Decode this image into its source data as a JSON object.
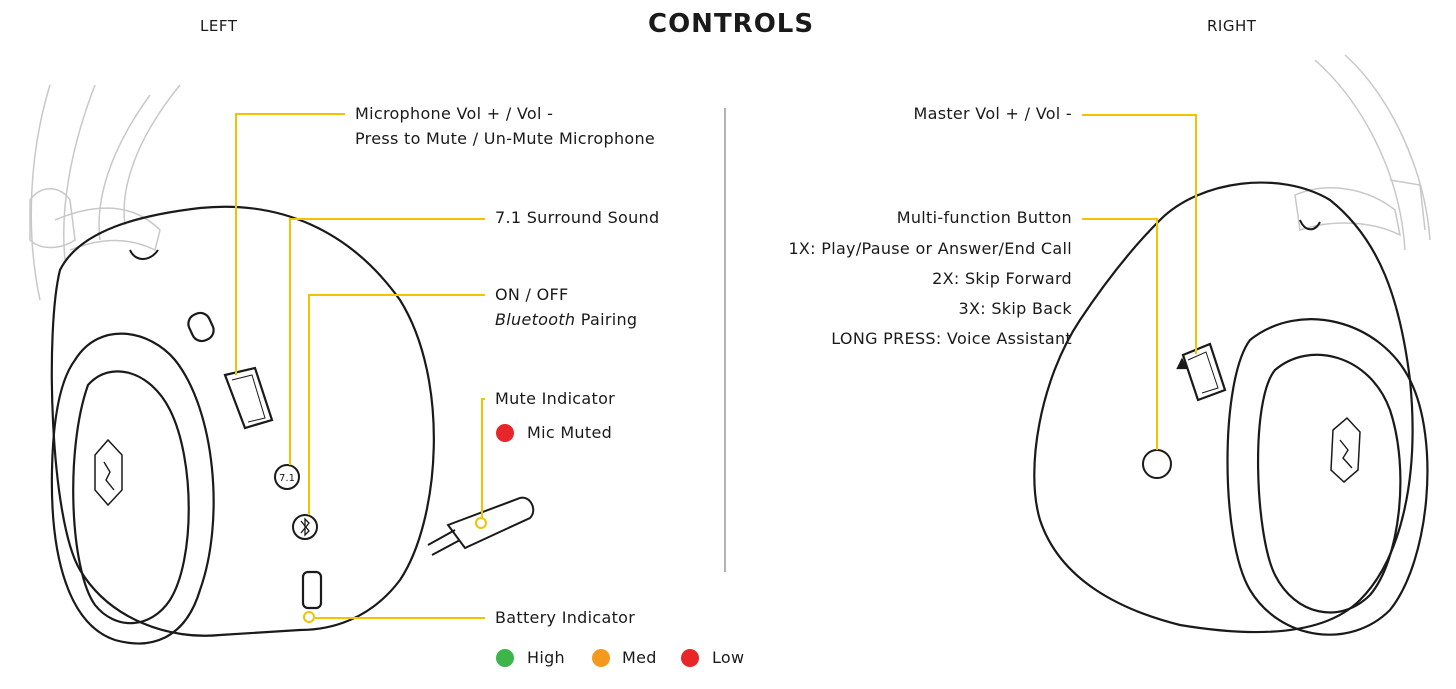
{
  "header": {
    "title": "CONTROLS",
    "left_label": "LEFT",
    "right_label": "RIGHT"
  },
  "left": {
    "mic_vol_line1": "Microphone Vol + / Vol -",
    "mic_vol_line2": "Press to Mute / Un-Mute Microphone",
    "surround": "7.1 Surround Sound",
    "onoff": "ON / OFF",
    "bt_italic": "Bluetooth",
    "bt_rest": " Pairing",
    "mute_indicator": "Mute Indicator",
    "mic_muted": "Mic Muted",
    "battery_indicator": "Battery Indicator",
    "battery_levels": {
      "high": "High",
      "med": "Med",
      "low": "Low"
    },
    "button_7_1": "7.1"
  },
  "right": {
    "master_vol": "Master Vol + / Vol -",
    "multifunction": "Multi-function Button",
    "press_1x": "1X: Play/Pause or Answer/End Call",
    "press_2x": "2X: Skip Forward",
    "press_3x": "3X: Skip Back",
    "long_press": "LONG PRESS: Voice Assistant"
  },
  "colors": {
    "callout": "#f2c300",
    "red": "#e8262a",
    "green": "#3db54a",
    "orange": "#f39a1e",
    "ink": "#1a1a1a",
    "headband": "#c8c8c8"
  }
}
